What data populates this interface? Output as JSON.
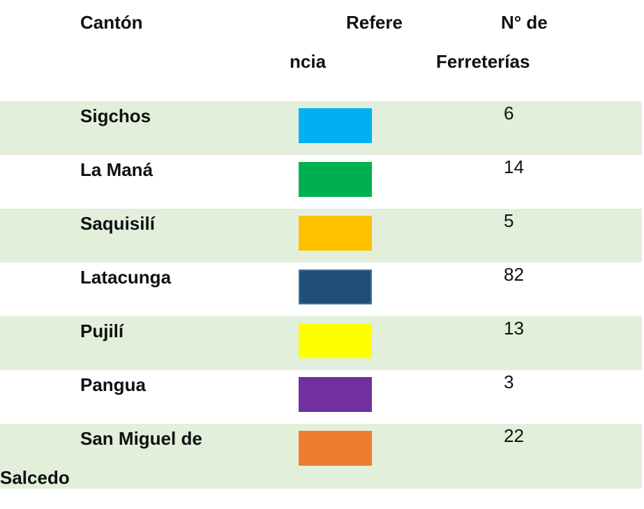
{
  "table": {
    "header": [
      [
        "Cantón"
      ],
      [
        "Refere",
        "ncia"
      ],
      [
        "N° de",
        "Ferreterías"
      ]
    ],
    "rows": [
      {
        "canton": [
          "Sigchos"
        ],
        "color": "#00b0f0",
        "count": 6
      },
      {
        "canton": [
          "La Maná"
        ],
        "color": "#00b050",
        "count": 14
      },
      {
        "canton": [
          "Saquisilí"
        ],
        "color": "#ffc000",
        "count": 5
      },
      {
        "canton": [
          "Latacunga"
        ],
        "color": "#1f4e79",
        "count": 82
      },
      {
        "canton": [
          "Pujilí"
        ],
        "color": "#ffff00",
        "count": 13
      },
      {
        "canton": [
          "Pangua"
        ],
        "color": "#7030a0",
        "count": 3
      },
      {
        "canton": [
          "San Miguel de",
          "Salcedo"
        ],
        "color": "#ed7d31",
        "count": 22
      }
    ]
  }
}
